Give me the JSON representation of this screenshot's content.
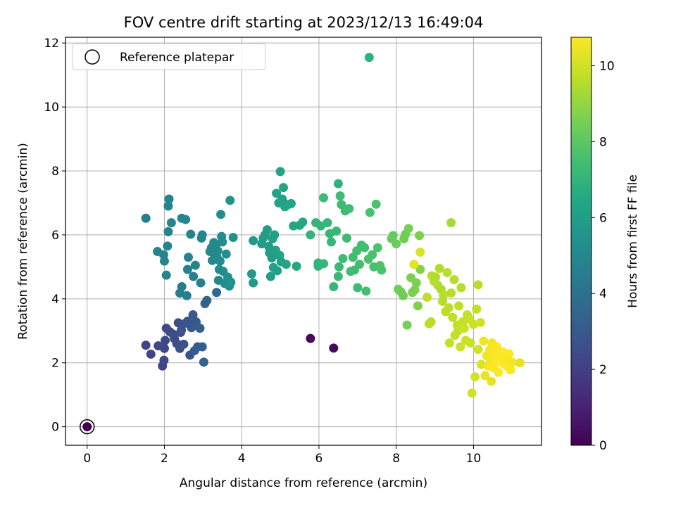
{
  "chart_data": {
    "type": "scatter",
    "title": "FOV centre drift starting at 2023/12/13 16:49:04",
    "xlabel": "Angular distance from reference (arcmin)",
    "ylabel": "Rotation from reference (arcmin)",
    "xlim": [
      -0.56,
      11.76
    ],
    "ylim": [
      -0.58,
      12.18
    ],
    "xticks": [
      "0",
      "2",
      "4",
      "6",
      "8",
      "10"
    ],
    "yticks": [
      "0",
      "2",
      "4",
      "6",
      "8",
      "10",
      "12"
    ],
    "grid": true,
    "legend": {
      "position": "upper-left",
      "entries": [
        "Reference platepar"
      ]
    },
    "colorbar": {
      "label": "Hours from first FF file",
      "colormap": "viridis",
      "range": [
        0,
        10.75
      ],
      "ticks": [
        "0",
        "2",
        "4",
        "6",
        "8",
        "10"
      ]
    },
    "reference_point": [
      0,
      0
    ],
    "points": [
      [
        0,
        0,
        0.0
      ],
      [
        5.78,
        2.76,
        0.2
      ],
      [
        6.38,
        2.46,
        0.3
      ],
      [
        1.52,
        2.55,
        2.2
      ],
      [
        1.65,
        2.27,
        2.2
      ],
      [
        1.84,
        2.53,
        2.3
      ],
      [
        1.95,
        1.9,
        2.2
      ],
      [
        1.99,
        2.08,
        2.3
      ],
      [
        2.0,
        2.45,
        2.3
      ],
      [
        2.02,
        2.7,
        2.4
      ],
      [
        2.05,
        3.08,
        2.4
      ],
      [
        2.14,
        2.97,
        2.4
      ],
      [
        2.22,
        2.9,
        2.5
      ],
      [
        2.26,
        2.75,
        2.5
      ],
      [
        2.32,
        2.6,
        2.5
      ],
      [
        2.36,
        3.25,
        2.5
      ],
      [
        2.4,
        2.45,
        2.6
      ],
      [
        2.42,
        2.95,
        2.6
      ],
      [
        2.44,
        3.02,
        2.7
      ],
      [
        2.5,
        2.58,
        2.7
      ],
      [
        2.55,
        3.24,
        2.8
      ],
      [
        2.6,
        3.3,
        2.8
      ],
      [
        2.66,
        2.24,
        2.8
      ],
      [
        2.7,
        3.1,
        2.9
      ],
      [
        2.74,
        3.5,
        3.0
      ],
      [
        2.78,
        2.38,
        3.0
      ],
      [
        2.82,
        3.28,
        3.0
      ],
      [
        2.86,
        2.5,
        3.1
      ],
      [
        2.92,
        3.08,
        3.2
      ],
      [
        2.98,
        2.5,
        3.2
      ],
      [
        3.02,
        2.02,
        3.3
      ],
      [
        3.05,
        3.85,
        3.4
      ],
      [
        3.1,
        3.95,
        3.4
      ],
      [
        3.35,
        4.2,
        3.6
      ],
      [
        1.52,
        6.52,
        4.6
      ],
      [
        1.82,
        5.48,
        4.8
      ],
      [
        1.98,
        5.38,
        4.8
      ],
      [
        2.0,
        5.18,
        4.8
      ],
      [
        2.05,
        4.74,
        4.8
      ],
      [
        2.08,
        5.65,
        4.8
      ],
      [
        2.1,
        6.1,
        4.8
      ],
      [
        2.1,
        6.9,
        4.8
      ],
      [
        2.12,
        7.12,
        4.8
      ],
      [
        2.18,
        6.38,
        4.8
      ],
      [
        2.4,
        4.18,
        4.6
      ],
      [
        2.45,
        4.38,
        4.6
      ],
      [
        2.45,
        6.52,
        4.8
      ],
      [
        2.55,
        6.48,
        4.8
      ],
      [
        2.58,
        4.1,
        4.6
      ],
      [
        2.6,
        4.92,
        4.7
      ],
      [
        2.62,
        5.3,
        4.8
      ],
      [
        2.68,
        6.02,
        4.8
      ],
      [
        2.75,
        4.7,
        4.7
      ],
      [
        2.8,
        5.05,
        4.8
      ],
      [
        2.94,
        4.5,
        4.7
      ],
      [
        2.96,
        5.9,
        4.9
      ],
      [
        2.98,
        6.0,
        4.9
      ],
      [
        3.18,
        5.48,
        5.0
      ],
      [
        3.22,
        5.6,
        5.0
      ],
      [
        3.24,
        5.2,
        5.0
      ],
      [
        3.28,
        5.76,
        5.0
      ],
      [
        3.3,
        5.4,
        5.0
      ],
      [
        3.33,
        5.68,
        5.0
      ],
      [
        3.36,
        5.3,
        5.0
      ],
      [
        3.38,
        5.5,
        5.1
      ],
      [
        3.4,
        4.58,
        5.0
      ],
      [
        3.42,
        4.92,
        5.1
      ],
      [
        3.44,
        5.18,
        5.1
      ],
      [
        3.46,
        6.64,
        5.2
      ],
      [
        3.48,
        5.95,
        5.2
      ],
      [
        3.5,
        5.78,
        5.2
      ],
      [
        3.52,
        4.86,
        5.2
      ],
      [
        3.56,
        4.48,
        5.2
      ],
      [
        3.6,
        5.4,
        5.3
      ],
      [
        3.64,
        4.68,
        5.3
      ],
      [
        3.68,
        4.4,
        5.3
      ],
      [
        3.7,
        7.08,
        5.4
      ],
      [
        3.72,
        4.52,
        5.4
      ],
      [
        3.78,
        5.92,
        5.4
      ],
      [
        4.26,
        4.78,
        5.8
      ],
      [
        4.3,
        4.5,
        5.8
      ],
      [
        4.3,
        5.82,
        5.8
      ],
      [
        4.52,
        5.72,
        5.9
      ],
      [
        4.56,
        5.9,
        5.9
      ],
      [
        4.6,
        6.0,
        6.0
      ],
      [
        4.66,
        6.16,
        6.0
      ],
      [
        4.7,
        5.64,
        6.0
      ],
      [
        4.72,
        5.44,
        6.0
      ],
      [
        4.75,
        4.7,
        6.0
      ],
      [
        4.78,
        5.28,
        6.0
      ],
      [
        4.8,
        5.88,
        6.1
      ],
      [
        4.82,
        4.98,
        6.1
      ],
      [
        4.85,
        6.0,
        6.1
      ],
      [
        4.88,
        5.52,
        6.1
      ],
      [
        4.9,
        7.3,
        6.2
      ],
      [
        4.92,
        4.88,
        6.1
      ],
      [
        4.96,
        7.0,
        6.2
      ],
      [
        4.98,
        5.36,
        6.2
      ],
      [
        5.0,
        7.98,
        6.2
      ],
      [
        5.02,
        5.16,
        6.2
      ],
      [
        5.05,
        7.12,
        6.2
      ],
      [
        5.08,
        7.48,
        6.3
      ],
      [
        5.12,
        6.88,
        6.3
      ],
      [
        5.15,
        5.08,
        6.3
      ],
      [
        5.2,
        6.95,
        6.3
      ],
      [
        5.28,
        6.98,
        6.3
      ],
      [
        5.34,
        6.28,
        6.4
      ],
      [
        5.42,
        5.02,
        6.4
      ],
      [
        5.5,
        6.3,
        6.4
      ],
      [
        5.58,
        6.4,
        6.4
      ],
      [
        5.78,
        6.0,
        7.0
      ],
      [
        5.92,
        6.38,
        7.0
      ],
      [
        5.98,
        5.02,
        7.0
      ],
      [
        5.98,
        5.12,
        7.0
      ],
      [
        6.05,
        6.28,
        7.0
      ],
      [
        6.12,
        5.1,
        7.1
      ],
      [
        6.12,
        7.16,
        7.3
      ],
      [
        6.22,
        6.38,
        7.1
      ],
      [
        6.28,
        6.04,
        7.1
      ],
      [
        6.32,
        5.78,
        7.1
      ],
      [
        6.38,
        4.38,
        7.1
      ],
      [
        6.45,
        6.12,
        7.2
      ],
      [
        6.5,
        4.7,
        7.2
      ],
      [
        6.52,
        5.0,
        7.2
      ],
      [
        6.55,
        7.22,
        7.3
      ],
      [
        6.58,
        6.95,
        7.3
      ],
      [
        6.62,
        5.26,
        7.3
      ],
      [
        6.68,
        6.75,
        7.3
      ],
      [
        6.72,
        5.9,
        7.3
      ],
      [
        6.78,
        6.82,
        7.4
      ],
      [
        6.82,
        4.86,
        7.4
      ],
      [
        6.88,
        5.3,
        7.4
      ],
      [
        6.92,
        4.9,
        7.4
      ],
      [
        6.98,
        5.5,
        7.5
      ],
      [
        7.05,
        5.08,
        7.5
      ],
      [
        7.1,
        5.68,
        7.5
      ],
      [
        7.18,
        5.6,
        7.5
      ],
      [
        7.22,
        4.24,
        7.5
      ],
      [
        7.28,
        5.24,
        7.6
      ],
      [
        7.32,
        6.7,
        7.6
      ],
      [
        7.38,
        5.38,
        7.6
      ],
      [
        7.42,
        5.0,
        7.6
      ],
      [
        7.48,
        6.96,
        7.7
      ],
      [
        7.52,
        5.6,
        7.7
      ],
      [
        7.58,
        5.04,
        7.7
      ],
      [
        7.62,
        4.9,
        7.7
      ],
      [
        7.3,
        11.55,
        6.9
      ],
      [
        6.5,
        7.6,
        6.9
      ],
      [
        7.0,
        4.35,
        7.3
      ],
      [
        7.88,
        5.88,
        8.2
      ],
      [
        7.92,
        5.98,
        8.2
      ],
      [
        8.0,
        5.72,
        8.3
      ],
      [
        8.05,
        4.3,
        8.4
      ],
      [
        8.12,
        4.22,
        8.4
      ],
      [
        8.18,
        4.1,
        8.4
      ],
      [
        8.2,
        5.88,
        8.4
      ],
      [
        8.24,
        6.02,
        8.4
      ],
      [
        8.28,
        3.18,
        8.5
      ],
      [
        8.32,
        6.2,
        8.5
      ],
      [
        8.38,
        4.66,
        8.6
      ],
      [
        8.42,
        4.2,
        8.6
      ],
      [
        8.48,
        4.28,
        8.6
      ],
      [
        8.52,
        4.5,
        8.6
      ],
      [
        8.56,
        3.78,
        8.7
      ],
      [
        8.6,
        5.98,
        8.6
      ],
      [
        8.62,
        4.92,
        8.7
      ],
      [
        8.46,
        5.08,
        10.3
      ],
      [
        8.62,
        5.46,
        10.1
      ],
      [
        8.8,
        4.05,
        9.7
      ],
      [
        8.85,
        3.22,
        9.7
      ],
      [
        8.9,
        3.28,
        9.6
      ],
      [
        8.92,
        4.72,
        9.6
      ],
      [
        8.98,
        4.55,
        9.5
      ],
      [
        9.02,
        4.68,
        9.5
      ],
      [
        9.08,
        4.42,
        9.5
      ],
      [
        9.12,
        4.95,
        9.5
      ],
      [
        9.16,
        4.3,
        9.4
      ],
      [
        9.2,
        3.92,
        9.6
      ],
      [
        9.22,
        4.12,
        9.6
      ],
      [
        9.28,
        3.6,
        9.7
      ],
      [
        9.32,
        4.82,
        9.6
      ],
      [
        9.36,
        3.72,
        9.7
      ],
      [
        9.38,
        2.62,
        9.8
      ],
      [
        9.42,
        4.18,
        9.6
      ],
      [
        9.42,
        6.38,
        9.3
      ],
      [
        9.46,
        3.42,
        9.7
      ],
      [
        9.5,
        4.6,
        9.6
      ],
      [
        9.52,
        2.86,
        9.8
      ],
      [
        9.58,
        3.18,
        9.8
      ],
      [
        9.6,
        3.0,
        9.8
      ],
      [
        9.62,
        3.78,
        9.7
      ],
      [
        9.66,
        2.5,
        9.9
      ],
      [
        9.68,
        4.35,
        9.6
      ],
      [
        9.72,
        3.28,
        9.8
      ],
      [
        9.76,
        3.08,
        9.9
      ],
      [
        9.8,
        2.7,
        9.9
      ],
      [
        9.84,
        3.5,
        9.8
      ],
      [
        9.9,
        3.36,
        9.9
      ],
      [
        9.92,
        2.62,
        9.9
      ],
      [
        9.96,
        1.05,
        10.0
      ],
      [
        10.0,
        3.2,
        9.9
      ],
      [
        10.04,
        1.56,
        10.0
      ],
      [
        10.08,
        3.68,
        9.8
      ],
      [
        10.12,
        2.42,
        10.0
      ],
      [
        10.12,
        4.44,
        9.6
      ],
      [
        10.18,
        3.26,
        10.0
      ],
      [
        10.2,
        1.95,
        10.2
      ],
      [
        10.26,
        2.68,
        10.5
      ],
      [
        10.3,
        1.6,
        10.4
      ],
      [
        10.34,
        2.22,
        10.5
      ],
      [
        10.38,
        1.9,
        10.6
      ],
      [
        10.42,
        2.4,
        10.6
      ],
      [
        10.44,
        2.08,
        10.6
      ],
      [
        10.46,
        1.42,
        10.4
      ],
      [
        10.48,
        2.62,
        10.6
      ],
      [
        10.52,
        1.84,
        10.7
      ],
      [
        10.54,
        2.28,
        10.7
      ],
      [
        10.58,
        2.0,
        10.7
      ],
      [
        10.6,
        2.5,
        10.7
      ],
      [
        10.64,
        1.7,
        10.7
      ],
      [
        10.68,
        2.18,
        10.7
      ],
      [
        10.72,
        2.06,
        10.7
      ],
      [
        10.76,
        2.34,
        10.7
      ],
      [
        10.8,
        1.96,
        10.7
      ],
      [
        10.84,
        2.12,
        10.7
      ],
      [
        10.88,
        1.88,
        10.7
      ],
      [
        10.92,
        2.28,
        10.7
      ],
      [
        10.96,
        1.78,
        10.7
      ],
      [
        11.0,
        2.02,
        10.6
      ],
      [
        11.2,
        2.0,
        10.3
      ]
    ]
  }
}
